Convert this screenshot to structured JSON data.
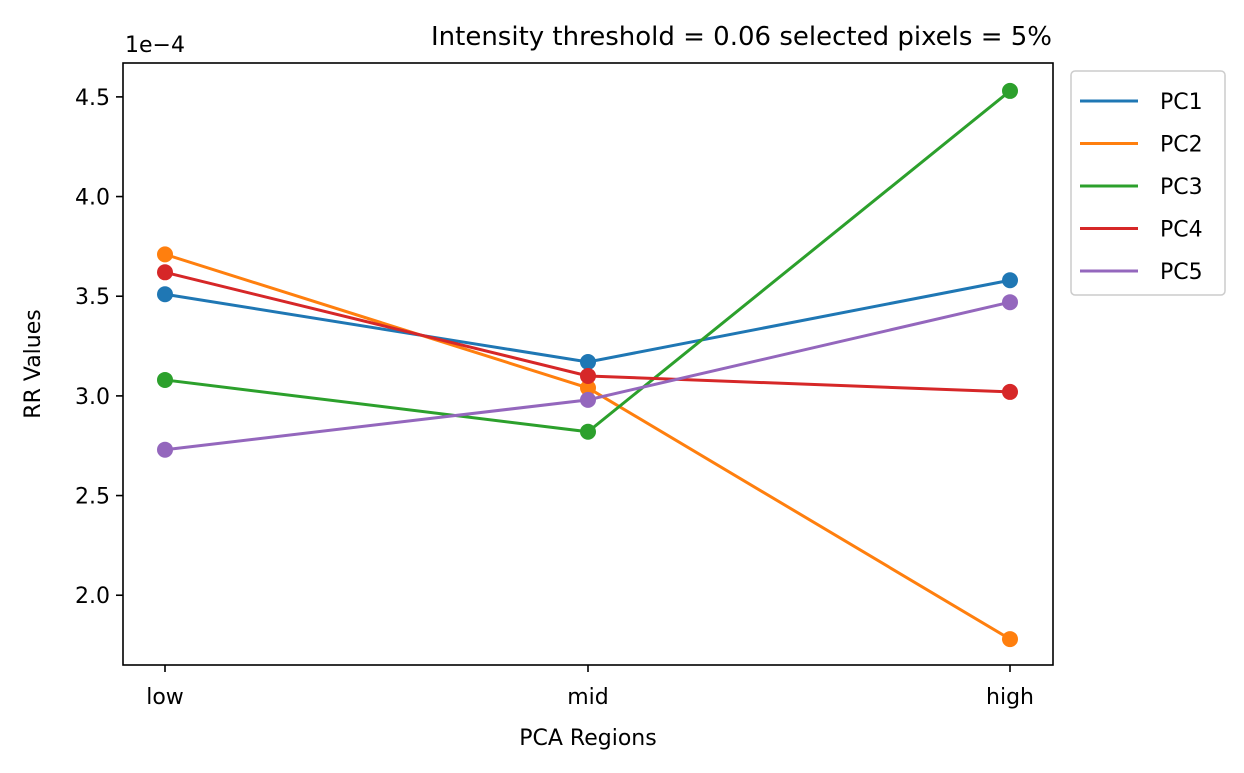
{
  "chart_data": {
    "type": "line",
    "title": "Intensity threshold = 0.06 selected pixels = 5%",
    "xlabel": "PCA Regions",
    "ylabel": "RR Values",
    "offset_label": "1e−4",
    "categories": [
      "low",
      "mid",
      "high"
    ],
    "ylim": [
      1.65,
      4.67
    ],
    "yticks": [
      2.0,
      2.5,
      3.0,
      3.5,
      4.0,
      4.5
    ],
    "ytick_labels": [
      "2.0",
      "2.5",
      "3.0",
      "3.5",
      "4.0",
      "4.5"
    ],
    "legend_position": "outside-top-right",
    "grid": false,
    "series": [
      {
        "name": "PC1",
        "color": "#1f77b4",
        "values": [
          3.51,
          3.17,
          3.58
        ]
      },
      {
        "name": "PC2",
        "color": "#ff7f0e",
        "values": [
          3.71,
          3.04,
          1.78
        ]
      },
      {
        "name": "PC3",
        "color": "#2ca02c",
        "values": [
          3.08,
          2.82,
          4.53
        ]
      },
      {
        "name": "PC4",
        "color": "#d62728",
        "values": [
          3.62,
          3.1,
          3.02
        ]
      },
      {
        "name": "PC5",
        "color": "#9467bd",
        "values": [
          2.73,
          2.98,
          3.47
        ]
      }
    ]
  }
}
